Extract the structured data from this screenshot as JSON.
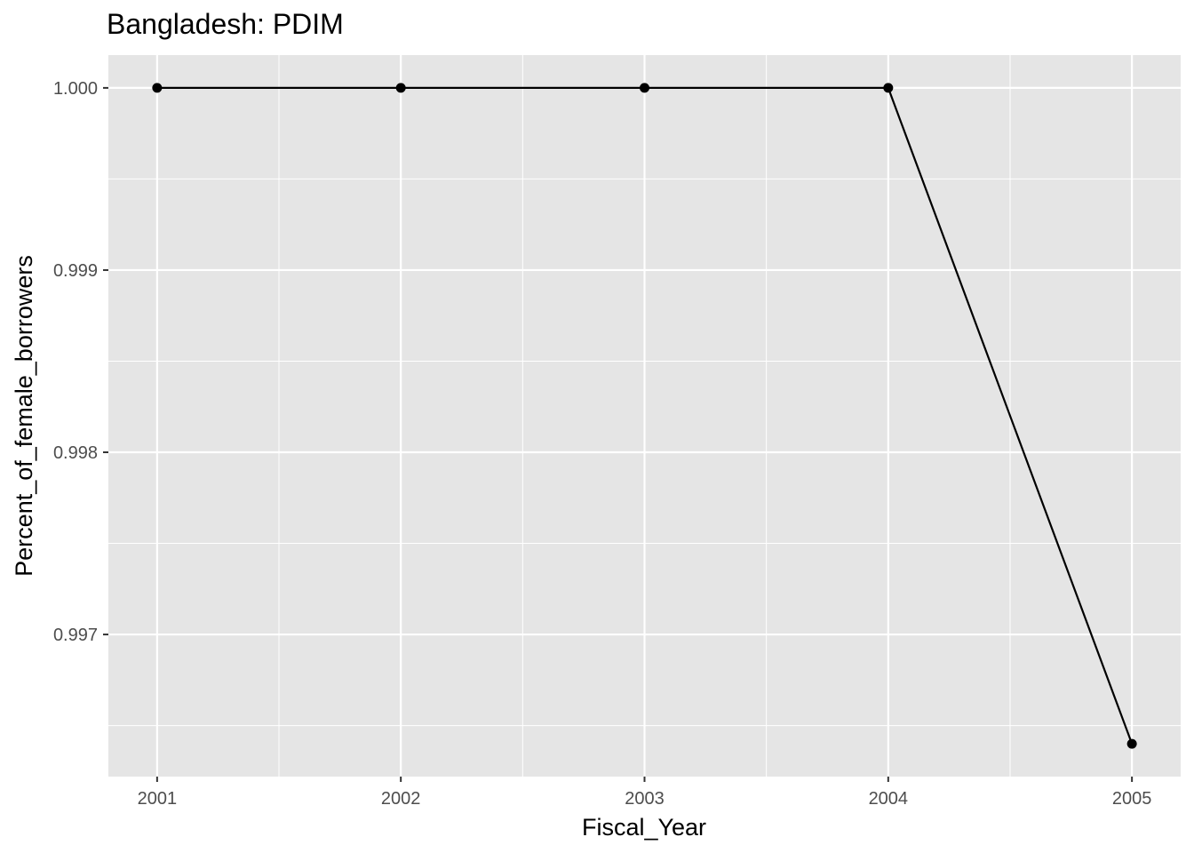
{
  "chart_data": {
    "type": "line",
    "title": "Bangladesh:  PDIM",
    "xlabel": "Fiscal_Year",
    "ylabel": "Percent_of_female_borrowers",
    "x": [
      2001,
      2002,
      2003,
      2004,
      2005
    ],
    "series": [
      {
        "values": [
          1.0,
          1.0,
          1.0,
          1.0,
          0.9964
        ]
      }
    ],
    "x_ticks": [
      "2001",
      "2002",
      "2003",
      "2004",
      "2005"
    ],
    "y_ticks": [
      "0.997",
      "0.998",
      "0.999",
      "1.000"
    ],
    "xlim": [
      2000.8,
      2005.2
    ],
    "ylim": [
      0.99622,
      1.00018
    ],
    "grid": true,
    "colors": {
      "panel_background": "#e5e5e5",
      "grid_line": "#ffffff",
      "series_line": "#000000",
      "point": "#000000",
      "tick_label": "#4d4d4d"
    }
  }
}
